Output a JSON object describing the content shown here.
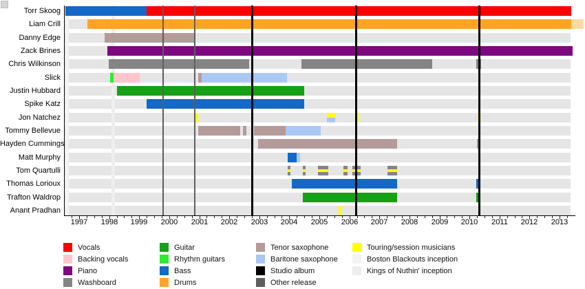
{
  "chart_data": {
    "type": "timeline",
    "title": "",
    "x_axis": {
      "years": [
        1997,
        1998,
        1999,
        2000,
        2001,
        2002,
        2003,
        2004,
        2005,
        2006,
        2007,
        2008,
        2009,
        2010,
        2011,
        2012,
        2013
      ],
      "min_year": 1996.52,
      "max_year": 2013.42
    },
    "members": [
      {
        "name": "Torr Skoog",
        "periods": [
          {
            "roles": [
              "bass"
            ],
            "start": 1996.55,
            "end": 1999.25
          },
          {
            "roles": [
              "vocals"
            ],
            "start": 1999.25,
            "end": 2013.39
          }
        ]
      },
      {
        "name": "Liam Crill",
        "periods": [
          {
            "roles": [
              "drums"
            ],
            "start": 1997.28,
            "end": 2013.39
          },
          {
            "roles": [
              "drums_fade"
            ],
            "start": 2013.39,
            "end": 2013.8
          }
        ]
      },
      {
        "name": "Danny Edge",
        "periods": [
          {
            "roles": [
              "tenor_sax"
            ],
            "start": 1997.85,
            "end": 2000.85
          }
        ]
      },
      {
        "name": "Zack Brines",
        "periods": [
          {
            "roles": [
              "piano"
            ],
            "start": 1997.94,
            "end": 2013.43
          }
        ]
      },
      {
        "name": "Chris Wilkinson",
        "periods": [
          {
            "roles": [
              "washboard"
            ],
            "start": 1997.99,
            "end": 2002.66
          },
          {
            "roles": [
              "washboard"
            ],
            "start": 2004.4,
            "end": 2008.76
          },
          {
            "roles": [
              "washboard"
            ],
            "start": 2010.23,
            "end": 2010.39
          }
        ]
      },
      {
        "name": "Slick",
        "periods": [
          {
            "roles": [
              "rhythm_guitars"
            ],
            "start": 1998.03,
            "end": 1998.15
          },
          {
            "roles": [
              "backing_vocals"
            ],
            "start": 1998.15,
            "end": 1999.02
          },
          {
            "roles": [
              "tenor_sax"
            ],
            "start": 2000.97,
            "end": 2001.08
          },
          {
            "roles": [
              "baritone_sax"
            ],
            "start": 2001.08,
            "end": 2003.92
          }
        ]
      },
      {
        "name": "Justin Hubbard",
        "periods": [
          {
            "roles": [
              "guitar"
            ],
            "start": 1998.26,
            "end": 2004.5
          }
        ]
      },
      {
        "name": "Spike Katz",
        "periods": [
          {
            "roles": [
              "bass"
            ],
            "start": 1999.25,
            "end": 2004.5
          }
        ]
      },
      {
        "name": "Jon Natchez",
        "periods": [
          {
            "roles": [
              "touring"
            ],
            "start": 2000.87,
            "end": 2000.97
          },
          {
            "roles": [
              "touring",
              "baritone_sax"
            ],
            "start": 2005.25,
            "end": 2005.53
          },
          {
            "roles": [
              "touring"
            ],
            "start": 2006.19,
            "end": 2006.31
          },
          {
            "roles": [
              "touring"
            ],
            "start": 2010.27,
            "end": 2010.37
          }
        ]
      },
      {
        "name": "Tommy Bellevue",
        "periods": [
          {
            "roles": [
              "tenor_sax"
            ],
            "start": 2000.97,
            "end": 2002.36
          },
          {
            "roles": [
              "tenor_sax"
            ],
            "start": 2002.46,
            "end": 2002.57
          },
          {
            "roles": [
              "tenor_sax"
            ],
            "start": 2002.82,
            "end": 2003.88
          },
          {
            "roles": [
              "baritone_sax"
            ],
            "start": 2003.88,
            "end": 2005.05
          }
        ]
      },
      {
        "name": "Hayden Cummings",
        "periods": [
          {
            "roles": [
              "tenor_sax"
            ],
            "start": 2002.96,
            "end": 2007.59
          },
          {
            "roles": [
              "tenor_sax"
            ],
            "start": 2010.25,
            "end": 2010.37
          }
        ]
      },
      {
        "name": "Matt Murphy",
        "periods": [
          {
            "roles": [
              "bass"
            ],
            "start": 2003.95,
            "end": 2004.24
          },
          {
            "roles": [
              "baritone_sax"
            ],
            "start": 2004.24,
            "end": 2004.36
          }
        ]
      },
      {
        "name": "Tom Quartulli",
        "periods": [
          {
            "roles": [
              "washboard",
              "touring",
              "washboard"
            ],
            "start": 2003.95,
            "end": 2004.04
          },
          {
            "roles": [
              "washboard",
              "touring",
              "washboard"
            ],
            "start": 2004.45,
            "end": 2004.54
          },
          {
            "roles": [
              "washboard",
              "touring",
              "washboard"
            ],
            "start": 2004.96,
            "end": 2005.3
          },
          {
            "roles": [
              "washboard",
              "touring",
              "washboard"
            ],
            "start": 2005.8,
            "end": 2005.94
          },
          {
            "roles": [
              "washboard",
              "touring",
              "washboard"
            ],
            "start": 2006.1,
            "end": 2006.38
          },
          {
            "roles": [
              "washboard",
              "touring",
              "washboard"
            ],
            "start": 2007.27,
            "end": 2007.59
          }
        ]
      },
      {
        "name": "Thomas Lorioux",
        "periods": [
          {
            "roles": [
              "bass"
            ],
            "start": 2004.08,
            "end": 2007.59
          },
          {
            "roles": [
              "bass"
            ],
            "start": 2010.23,
            "end": 2010.36
          }
        ]
      },
      {
        "name": "Trafton Waldrop",
        "periods": [
          {
            "roles": [
              "guitar"
            ],
            "start": 2004.45,
            "end": 2007.59
          },
          {
            "roles": [
              "guitar"
            ],
            "start": 2010.23,
            "end": 2010.36
          }
        ]
      },
      {
        "name": "Anant Pradhan",
        "periods": [
          {
            "roles": [
              "touring"
            ],
            "start": 2005.64,
            "end": 2005.73
          }
        ]
      }
    ],
    "events": [
      {
        "type": "other_release",
        "year": 1999.8
      },
      {
        "type": "other_release",
        "year": 2000.85
      },
      {
        "type": "studio_album",
        "year": 2002.75
      },
      {
        "type": "studio_album",
        "year": 2006.21
      },
      {
        "type": "studio_album",
        "year": 2010.32
      }
    ],
    "inceptions": [
      {
        "type": "boston_blackouts_inception",
        "year": 1996.58
      },
      {
        "type": "kings_of_nuthin_inception",
        "year": 1998.13
      }
    ],
    "colors": {
      "vocals": "#fe0000",
      "backing_vocals": "#ffc5cb",
      "piano": "#7d0880",
      "washboard": "#848484",
      "guitar": "#16a016",
      "rhythm_guitars": "#2dec2d",
      "bass": "#1468c8",
      "drums": "#ffa327",
      "drums_fade": "#ffd9a2",
      "tenor_sax": "#b59a9a",
      "baritone_sax": "#abc8f2",
      "studio_album": "#000000",
      "other_release": "#5e5e5e",
      "touring": "#ffff00",
      "boston_blackouts_inception": "#f3f3f3",
      "kings_of_nuthin_inception": "#eeeeee"
    },
    "legend_columns": [
      [
        {
          "key": "vocals",
          "label": "Vocals"
        },
        {
          "key": "backing_vocals",
          "label": "Backing vocals"
        },
        {
          "key": "piano",
          "label": "Piano"
        },
        {
          "key": "washboard",
          "label": "Washboard"
        }
      ],
      [
        {
          "key": "guitar",
          "label": "Guitar"
        },
        {
          "key": "rhythm_guitars",
          "label": "Rhythm guitars"
        },
        {
          "key": "bass",
          "label": "Bass"
        },
        {
          "key": "drums",
          "label": "Drums"
        }
      ],
      [
        {
          "key": "tenor_sax",
          "label": "Tenor saxophone"
        },
        {
          "key": "baritone_sax",
          "label": "Baritone saxophone"
        },
        {
          "key": "studio_album",
          "label": "Studio album"
        },
        {
          "key": "other_release",
          "label": "Other release"
        }
      ],
      [
        {
          "key": "touring",
          "label": "Touring/session musicians"
        },
        {
          "key": "boston_blackouts_inception",
          "label": "Boston Blackouts inception"
        },
        {
          "key": "kings_of_nuthin_inception",
          "label": "Kings of Nuthin' inception"
        }
      ]
    ]
  }
}
